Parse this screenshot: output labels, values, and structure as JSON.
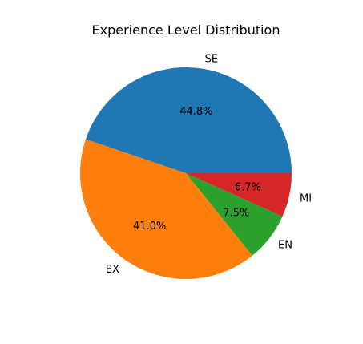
{
  "chart_data": {
    "type": "pie",
    "title": "Experience Level Distribution",
    "slices": [
      {
        "label": "SE",
        "value": 44.8,
        "pct_label": "44.8%",
        "color": "#1f77b4"
      },
      {
        "label": "EX",
        "value": 41.0,
        "pct_label": "41.0%",
        "color": "#ff7f0e"
      },
      {
        "label": "EN",
        "value": 7.5,
        "pct_label": "7.5%",
        "color": "#2ca02c"
      },
      {
        "label": "MI",
        "value": 6.7,
        "pct_label": "6.7%",
        "color": "#d62728"
      }
    ],
    "start_angle_deg": 0,
    "direction": "counterclockwise",
    "legend": "none"
  }
}
